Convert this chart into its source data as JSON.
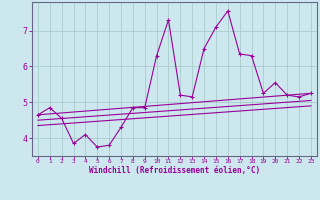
{
  "bg_color": "#cce8ee",
  "grid_color": "#aacccc",
  "line_color": "#990099",
  "xlabel": "Windchill (Refroidissement éolien,°C)",
  "xlim": [
    -0.5,
    23.5
  ],
  "ylim": [
    3.5,
    7.8
  ],
  "yticks": [
    4,
    5,
    6,
    7
  ],
  "xticks": [
    0,
    1,
    2,
    3,
    4,
    5,
    6,
    7,
    8,
    9,
    10,
    11,
    12,
    13,
    14,
    15,
    16,
    17,
    18,
    19,
    20,
    21,
    22,
    23
  ],
  "series1_x": [
    0,
    1,
    2,
    3,
    4,
    5,
    6,
    7,
    8,
    9,
    10,
    11,
    12,
    13,
    14,
    15,
    16,
    17,
    18,
    19,
    20,
    21,
    22,
    23
  ],
  "series1_y": [
    4.65,
    4.85,
    4.55,
    3.85,
    4.1,
    3.75,
    3.8,
    4.3,
    4.85,
    4.85,
    6.3,
    7.3,
    5.2,
    5.15,
    6.5,
    7.1,
    7.55,
    6.35,
    6.3,
    5.25,
    5.55,
    5.2,
    5.15,
    5.25
  ],
  "series2_x": [
    0,
    23
  ],
  "series2_y": [
    4.65,
    5.25
  ],
  "series3_x": [
    0,
    23
  ],
  "series3_y": [
    4.5,
    5.05
  ],
  "series4_x": [
    0,
    23
  ],
  "series4_y": [
    4.35,
    4.9
  ]
}
